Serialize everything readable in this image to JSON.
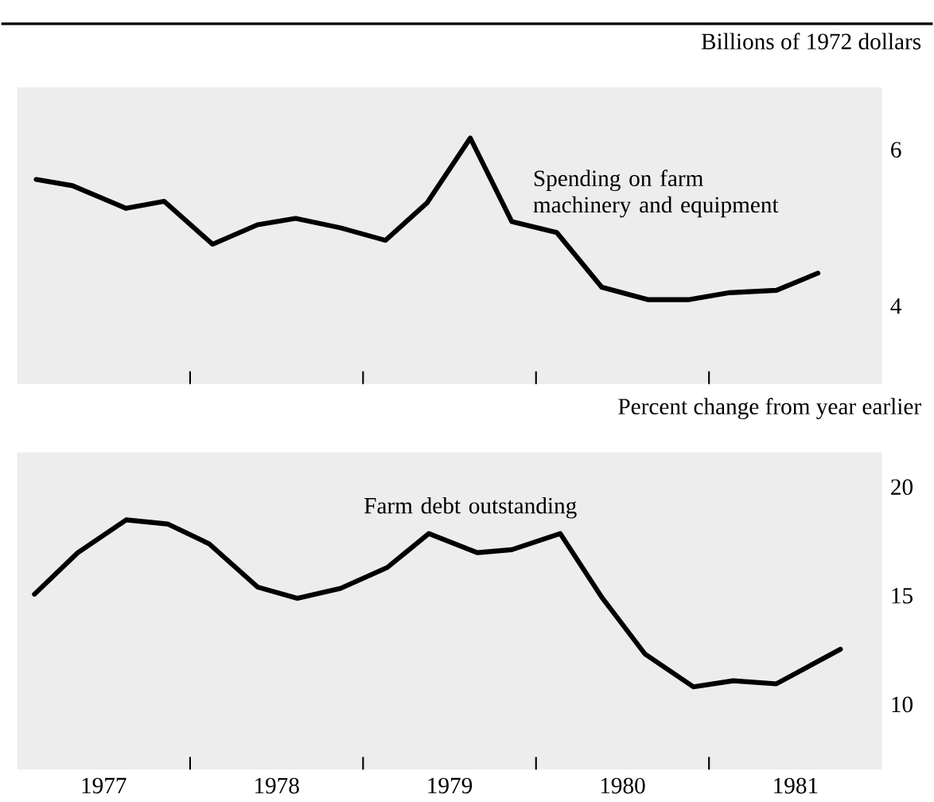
{
  "chart_data": [
    {
      "type": "line",
      "ylabel": "Billions of 1972 dollars",
      "marker": "none",
      "tick_labels": "y",
      "xlim": [
        1977,
        1982
      ],
      "ylim": [
        3,
        6.8
      ],
      "yticks": [
        4,
        6
      ],
      "xticks": [
        {
          "value": 1978,
          "label": null
        },
        {
          "value": 1979,
          "label": null
        },
        {
          "value": 1980,
          "label": null
        },
        {
          "value": 1981,
          "label": null
        }
      ],
      "series": [
        {
          "name": "Spending on farm machinery and equipment",
          "color": "#000000",
          "x": [
            1977.11,
            1977.32,
            1977.63,
            1977.85,
            1978.13,
            1978.39,
            1978.61,
            1978.87,
            1979.13,
            1979.37,
            1979.62,
            1979.86,
            1980.12,
            1980.38,
            1980.65,
            1980.88,
            1981.12,
            1981.39,
            1981.63
          ],
          "values": [
            5.62,
            5.54,
            5.25,
            5.34,
            4.79,
            5.04,
            5.12,
            5.0,
            4.84,
            5.32,
            6.15,
            5.08,
            4.94,
            4.24,
            4.08,
            4.08,
            4.17,
            4.2,
            4.42
          ]
        }
      ]
    },
    {
      "type": "line",
      "ylabel": "Percent change from year earlier",
      "marker": "none",
      "xlim": [
        1977,
        1982
      ],
      "ylim": [
        7,
        21.6
      ],
      "yticks": [
        10,
        15,
        20
      ],
      "xticks": [
        {
          "value": 1977.5,
          "label": "1977"
        },
        {
          "value": 1978,
          "label": null
        },
        {
          "value": 1978.5,
          "label": "1978"
        },
        {
          "value": 1979,
          "label": null
        },
        {
          "value": 1979.5,
          "label": "1979"
        },
        {
          "value": 1980,
          "label": null
        },
        {
          "value": 1980.5,
          "label": "1980"
        },
        {
          "value": 1981,
          "label": null
        },
        {
          "value": 1981.5,
          "label": "1981"
        }
      ],
      "series": [
        {
          "name": "Farm debt outstanding",
          "color": "#000000",
          "x": [
            1977.1,
            1977.35,
            1977.63,
            1977.87,
            1978.11,
            1978.39,
            1978.62,
            1978.87,
            1979.14,
            1979.38,
            1979.66,
            1979.86,
            1980.14,
            1980.38,
            1980.63,
            1980.91,
            1981.14,
            1981.39,
            1981.76
          ],
          "values": [
            15.07,
            16.98,
            18.49,
            18.3,
            17.39,
            15.4,
            14.88,
            15.34,
            16.3,
            17.86,
            16.98,
            17.12,
            17.86,
            14.93,
            12.32,
            10.81,
            11.09,
            10.95,
            12.54
          ]
        }
      ]
    }
  ]
}
